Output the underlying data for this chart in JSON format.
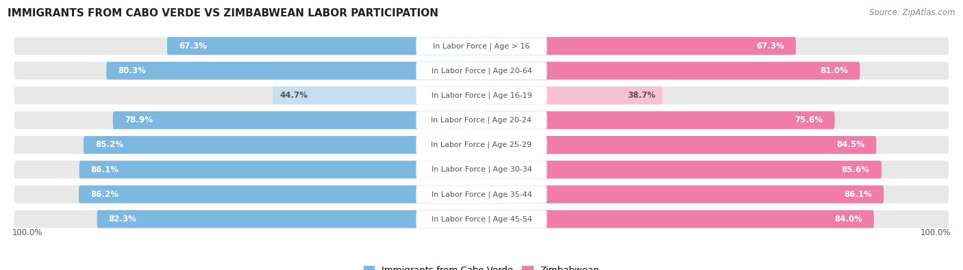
{
  "title": "IMMIGRANTS FROM CABO VERDE VS ZIMBABWEAN LABOR PARTICIPATION",
  "source": "Source: ZipAtlas.com",
  "categories": [
    "In Labor Force | Age > 16",
    "In Labor Force | Age 20-64",
    "In Labor Force | Age 16-19",
    "In Labor Force | Age 20-24",
    "In Labor Force | Age 25-29",
    "In Labor Force | Age 30-34",
    "In Labor Force | Age 35-44",
    "In Labor Force | Age 45-54"
  ],
  "cabo_verde": [
    67.3,
    80.3,
    44.7,
    78.9,
    85.2,
    86.1,
    86.2,
    82.3
  ],
  "zimbabwean": [
    67.3,
    81.0,
    38.7,
    75.6,
    84.5,
    85.6,
    86.1,
    84.0
  ],
  "cabo_color": "#7db8e0",
  "cabo_color_light": "#c5dff0",
  "zimb_color": "#f07ca8",
  "zimb_color_light": "#f8c0d5",
  "row_bg_color": "#e8e8e8",
  "white": "#ffffff",
  "label_white": "#ffffff",
  "label_dark": "#555555",
  "max_val": 100.0,
  "low_threshold": 60.0,
  "bottom_label": "100.0%",
  "legend_cabo": "Immigrants from Cabo Verde",
  "legend_zimb": "Zimbabwean"
}
